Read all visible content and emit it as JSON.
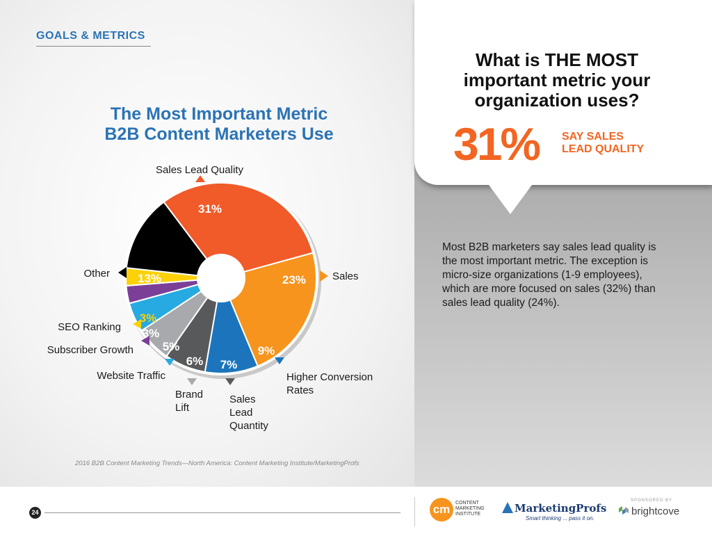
{
  "header": {
    "section": "GOALS & METRICS"
  },
  "chart_data": {
    "type": "pie",
    "title": "The Most Important Metric B2B Content Marketers Use",
    "title_lines": [
      "The Most Important Metric",
      "B2B Content Marketers Use"
    ],
    "slices": [
      {
        "label": "Sales Lead Quality",
        "value": 31,
        "display": "31%",
        "color": "#f15a29"
      },
      {
        "label": "Sales",
        "value": 23,
        "display": "23%",
        "color": "#f7941d"
      },
      {
        "label": "Higher Conversion Rates",
        "value": 9,
        "display": "9%",
        "color": "#1c75bc"
      },
      {
        "label": "Sales Lead Quantity",
        "value": 7,
        "display": "7%",
        "color": "#58595b"
      },
      {
        "label": "Brand Lift",
        "value": 6,
        "display": "6%",
        "color": "#a7a9ac"
      },
      {
        "label": "Website Traffic",
        "value": 5,
        "display": "5%",
        "color": "#27aae1"
      },
      {
        "label": "Subscriber Growth",
        "value": 3,
        "display": "3%",
        "color": "#7b3f98"
      },
      {
        "label": "SEO Ranking",
        "value": 3,
        "display": "3%",
        "color": "#fdd108"
      },
      {
        "label": "Other",
        "value": 13,
        "display": "13%",
        "color": "#000000"
      }
    ],
    "callout_lines": {
      "Sales Lead Quality": [
        "Sales Lead Quality"
      ],
      "Sales": [
        "Sales"
      ],
      "Higher Conversion Rates": [
        "Higher Conversion",
        "Rates"
      ],
      "Sales Lead Quantity": [
        "Sales",
        "Lead",
        "Quantity"
      ],
      "Brand Lift": [
        "Brand",
        "Lift"
      ],
      "Website Traffic": [
        "Website Traffic"
      ],
      "Subscriber Growth": [
        "Subscriber Growth"
      ],
      "SEO Ranking": [
        "SEO Ranking"
      ],
      "Other": [
        "Other"
      ]
    },
    "source": "2016 B2B Content Marketing Trends—North America: Content Marketing Institute/MarketingProfs"
  },
  "callout": {
    "question": "What is THE MOST important metric your organization uses?",
    "big_number": "31%",
    "big_caption_line1": "SAY SALES",
    "big_caption_line2": "LEAD QUALITY",
    "body": "Most B2B marketers say sales lead quality is the most important metric. The exception is micro-size organizations (1-9 employees), which are more focused on sales (32%) than sales lead quality (24%)."
  },
  "footer": {
    "page_number": "24",
    "cmi_mark": "cm",
    "cmi_text": "CONTENT MARKETING INSTITUTE",
    "mp_name": "MarketingProfs",
    "mp_tagline": "Smart thinking ... pass it on.",
    "sponsored_by": "SPONSORED BY",
    "sponsor_name": "brightcove"
  }
}
